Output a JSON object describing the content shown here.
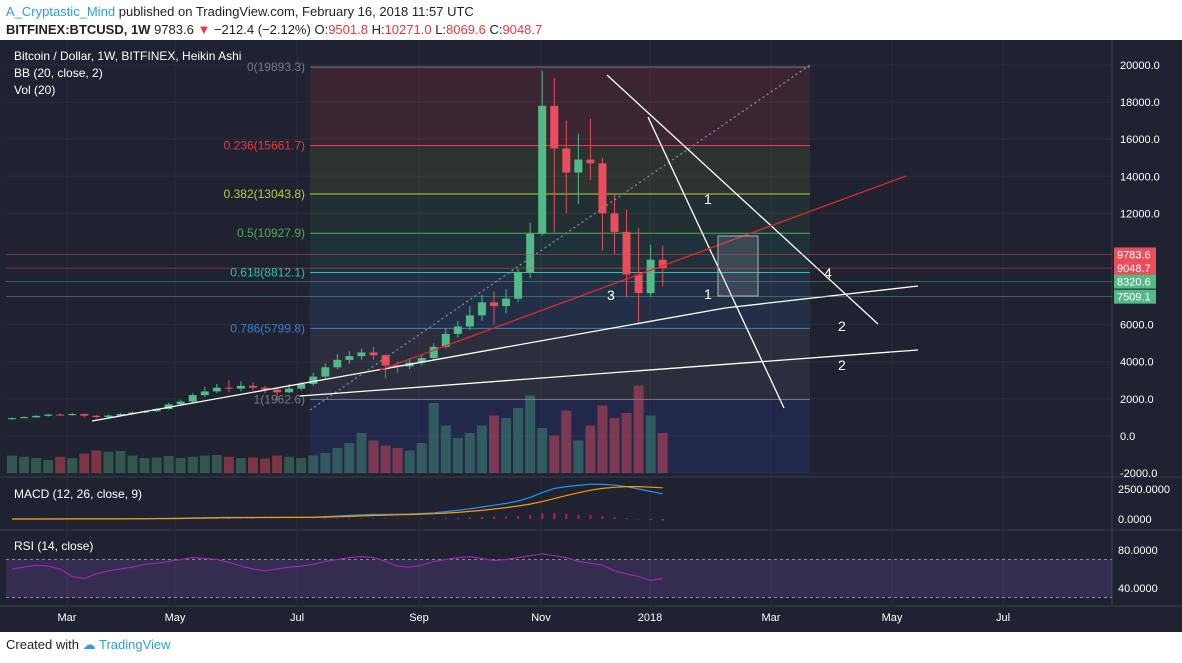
{
  "header": {
    "author": "A_Cryptastic_Mind",
    "published": "published on TradingView.com, February 16, 2018 11:57 UTC",
    "symbol": "BITFINEX:BTCUSD, 1W",
    "last": "9783.6",
    "change": "−212.4 (−2.12%)",
    "o_label": "O:",
    "o_value": "9501.8",
    "h_label": "H:",
    "h_value": "10271.0",
    "l_label": "L:",
    "l_value": "8069.6",
    "c_label": "C:",
    "c_value": "9048.7"
  },
  "legend": {
    "title": "Bitcoin / Dollar, 1W, BITFINEX, Heikin Ashi",
    "bb": "BB (20, close, 2)",
    "vol": "Vol (20)",
    "macd": "MACD (12, 26, close, 9)",
    "rsi": "RSI (14, close)"
  },
  "colors": {
    "background": "#1f2230",
    "up": "#53b987",
    "down": "#eb4d5c",
    "grid": "#2a2e39",
    "axis_text": "#ffffff"
  },
  "footer": {
    "created": "Created with",
    "brand": "TradingView"
  },
  "chart_data": {
    "type": "candlestick",
    "title": "Bitcoin / Dollar, 1W, BITFINEX, Heikin Ashi",
    "price_axis": {
      "ticks": [
        "20000.0",
        "18000.0",
        "16000.0",
        "14000.0",
        "12000.0",
        "6000.0",
        "4000.0",
        "2000.0",
        "0.0",
        "-2000.0"
      ],
      "ylim": [
        -2000,
        20000
      ]
    },
    "macd_axis": {
      "ticks": [
        "2500.0000",
        "0.0000"
      ]
    },
    "rsi_axis": {
      "ticks": [
        "80.0000",
        "40.0000"
      ]
    },
    "time_axis": {
      "ticks": [
        "Mar",
        "May",
        "Jul",
        "Sep",
        "Nov",
        "2018",
        "Mar",
        "May",
        "Jul"
      ]
    },
    "price_badges": [
      {
        "label": "9783.6",
        "value": 9783.6,
        "color": "#eb4d5c"
      },
      {
        "label": "9048.7",
        "value": 9048.7,
        "color": "#eb4d5c"
      },
      {
        "label": "8320.6",
        "value": 8320.6,
        "color": "#53b987"
      },
      {
        "label": "7509.1",
        "value": 7509.1,
        "color": "#53b987"
      }
    ],
    "fib_levels": [
      {
        "label": "0(19893.3)",
        "value": 19893.3,
        "color": "#787b86"
      },
      {
        "label": "0.236(15661.7)",
        "value": 15661.7,
        "color": "#f23645"
      },
      {
        "label": "0.382(13043.8)",
        "value": 13043.8,
        "color": "#b5cf3a"
      },
      {
        "label": "0.5(10927.9)",
        "value": 10927.9,
        "color": "#4caf50"
      },
      {
        "label": "0.618(8812.1)",
        "value": 8812.1,
        "color": "#26c6a6"
      },
      {
        "label": "0.786(5799.8)",
        "value": 5799.8,
        "color": "#3a7fd0"
      },
      {
        "label": "1(1962.6)",
        "value": 1962.6,
        "color": "#787b86"
      }
    ],
    "annotations": [
      "1",
      "1",
      "2",
      "2",
      "3",
      "4"
    ],
    "candles": [
      {
        "o": 900,
        "c": 960,
        "h": 1000,
        "l": 880
      },
      {
        "o": 960,
        "c": 1010,
        "h": 1050,
        "l": 940
      },
      {
        "o": 1000,
        "c": 1080,
        "h": 1120,
        "l": 980
      },
      {
        "o": 1080,
        "c": 1150,
        "h": 1190,
        "l": 1050
      },
      {
        "o": 1150,
        "c": 1120,
        "h": 1220,
        "l": 1080
      },
      {
        "o": 1120,
        "c": 1180,
        "h": 1230,
        "l": 1090
      },
      {
        "o": 1180,
        "c": 1090,
        "h": 1200,
        "l": 980
      },
      {
        "o": 1090,
        "c": 1020,
        "h": 1120,
        "l": 950
      },
      {
        "o": 1020,
        "c": 1100,
        "h": 1160,
        "l": 990
      },
      {
        "o": 1100,
        "c": 1180,
        "h": 1230,
        "l": 1060
      },
      {
        "o": 1180,
        "c": 1260,
        "h": 1300,
        "l": 1150
      },
      {
        "o": 1260,
        "c": 1330,
        "h": 1380,
        "l": 1230
      },
      {
        "o": 1330,
        "c": 1450,
        "h": 1500,
        "l": 1300
      },
      {
        "o": 1450,
        "c": 1700,
        "h": 1780,
        "l": 1420
      },
      {
        "o": 1700,
        "c": 1850,
        "h": 1950,
        "l": 1650
      },
      {
        "o": 1850,
        "c": 2200,
        "h": 2300,
        "l": 1800
      },
      {
        "o": 2200,
        "c": 2400,
        "h": 2650,
        "l": 2100
      },
      {
        "o": 2400,
        "c": 2600,
        "h": 2800,
        "l": 2300
      },
      {
        "o": 2600,
        "c": 2550,
        "h": 3000,
        "l": 2350
      },
      {
        "o": 2550,
        "c": 2700,
        "h": 2950,
        "l": 2400
      },
      {
        "o": 2700,
        "c": 2600,
        "h": 2900,
        "l": 2450
      },
      {
        "o": 2600,
        "c": 2500,
        "h": 2700,
        "l": 2300
      },
      {
        "o": 2500,
        "c": 2350,
        "h": 2600,
        "l": 1900
      },
      {
        "o": 2350,
        "c": 2550,
        "h": 2800,
        "l": 2300
      },
      {
        "o": 2550,
        "c": 2800,
        "h": 2900,
        "l": 2450
      },
      {
        "o": 2800,
        "c": 3200,
        "h": 3400,
        "l": 2700
      },
      {
        "o": 3200,
        "c": 3700,
        "h": 3900,
        "l": 3100
      },
      {
        "o": 3700,
        "c": 4100,
        "h": 4400,
        "l": 3600
      },
      {
        "o": 4100,
        "c": 4300,
        "h": 4550,
        "l": 3900
      },
      {
        "o": 4300,
        "c": 4500,
        "h": 4700,
        "l": 4100
      },
      {
        "o": 4500,
        "c": 4350,
        "h": 4800,
        "l": 4100
      },
      {
        "o": 4350,
        "c": 3800,
        "h": 4400,
        "l": 3100
      },
      {
        "o": 3800,
        "c": 3750,
        "h": 4000,
        "l": 3400
      },
      {
        "o": 3750,
        "c": 3950,
        "h": 4200,
        "l": 3600
      },
      {
        "o": 3950,
        "c": 4200,
        "h": 4400,
        "l": 3800
      },
      {
        "o": 4200,
        "c": 4800,
        "h": 5000,
        "l": 4100
      },
      {
        "o": 4800,
        "c": 5500,
        "h": 5800,
        "l": 4700
      },
      {
        "o": 5500,
        "c": 5900,
        "h": 6200,
        "l": 5300
      },
      {
        "o": 5900,
        "c": 6500,
        "h": 7000,
        "l": 5700
      },
      {
        "o": 6500,
        "c": 7200,
        "h": 7600,
        "l": 6200
      },
      {
        "o": 7200,
        "c": 7000,
        "h": 7800,
        "l": 6000
      },
      {
        "o": 7000,
        "c": 7400,
        "h": 7900,
        "l": 6600
      },
      {
        "o": 7400,
        "c": 8800,
        "h": 9000,
        "l": 7200
      },
      {
        "o": 8800,
        "c": 10900,
        "h": 11500,
        "l": 8500
      },
      {
        "o": 10900,
        "c": 17800,
        "h": 19700,
        "l": 10800
      },
      {
        "o": 17800,
        "c": 15500,
        "h": 19300,
        "l": 11000
      },
      {
        "o": 15500,
        "c": 14200,
        "h": 17000,
        "l": 12000
      },
      {
        "o": 14200,
        "c": 14900,
        "h": 16300,
        "l": 12500
      },
      {
        "o": 14900,
        "c": 14700,
        "h": 17100,
        "l": 13800
      },
      {
        "o": 14700,
        "c": 12000,
        "h": 15000,
        "l": 10000
      },
      {
        "o": 12000,
        "c": 11000,
        "h": 13000,
        "l": 9800
      },
      {
        "o": 11000,
        "c": 8700,
        "h": 12200,
        "l": 7500
      },
      {
        "o": 8700,
        "c": 7700,
        "h": 11200,
        "l": 6000
      },
      {
        "o": 7700,
        "c": 9500,
        "h": 10300,
        "l": 7500
      },
      {
        "o": 9500,
        "c": 9050,
        "h": 10270,
        "l": 8070
      }
    ],
    "volume": [
      700,
      650,
      600,
      520,
      650,
      600,
      780,
      900,
      850,
      880,
      700,
      600,
      620,
      680,
      600,
      650,
      700,
      720,
      650,
      600,
      620,
      580,
      700,
      650,
      600,
      700,
      800,
      1000,
      1200,
      1600,
      1300,
      1100,
      1000,
      900,
      1200,
      2800,
      1900,
      1400,
      1600,
      1900,
      2300,
      2200,
      2600,
      3100,
      1800,
      1500,
      2500,
      1300,
      1900,
      2700,
      2200,
      2400,
      3500,
      2300,
      1600
    ],
    "macd_hist": [
      10,
      10,
      10,
      10,
      15,
      15,
      10,
      10,
      10,
      10,
      12,
      15,
      20,
      25,
      30,
      35,
      40,
      40,
      40,
      35,
      30,
      25,
      20,
      20,
      25,
      30,
      40,
      50,
      60,
      65,
      60,
      55,
      50,
      50,
      55,
      70,
      90,
      110,
      140,
      180,
      200,
      210,
      250,
      330,
      460,
      470,
      430,
      380,
      320,
      240,
      160,
      80,
      -20,
      -90,
      -120
    ],
    "macd_line": [
      0,
      0,
      0,
      5,
      5,
      10,
      10,
      10,
      15,
      20,
      25,
      30,
      40,
      50,
      70,
      90,
      110,
      120,
      130,
      140,
      140,
      135,
      130,
      130,
      140,
      160,
      200,
      250,
      300,
      350,
      380,
      390,
      400,
      420,
      460,
      520,
      620,
      720,
      850,
      1000,
      1150,
      1300,
      1500,
      1800,
      2200,
      2550,
      2700,
      2800,
      2900,
      2880,
      2820,
      2700,
      2500,
      2300,
      2100
    ],
    "signal_line": [
      0,
      0,
      0,
      0,
      0,
      5,
      5,
      8,
      10,
      12,
      15,
      20,
      25,
      35,
      45,
      60,
      75,
      90,
      100,
      110,
      120,
      125,
      128,
      130,
      132,
      140,
      155,
      180,
      215,
      255,
      295,
      325,
      350,
      375,
      400,
      440,
      490,
      550,
      630,
      720,
      830,
      950,
      1080,
      1240,
      1450,
      1700,
      1950,
      2180,
      2400,
      2550,
      2640,
      2700,
      2700,
      2650,
      2600
    ],
    "rsi": [
      60,
      62,
      64,
      63,
      60,
      52,
      50,
      55,
      58,
      60,
      62,
      65,
      66,
      68,
      70,
      72,
      71,
      70,
      67,
      63,
      60,
      58,
      60,
      62,
      63,
      65,
      68,
      70,
      72,
      73,
      72,
      68,
      63,
      62,
      64,
      68,
      70,
      72,
      73,
      71,
      69,
      70,
      72,
      74,
      76,
      74,
      72,
      68,
      66,
      64,
      58,
      55,
      52,
      48,
      50
    ]
  }
}
